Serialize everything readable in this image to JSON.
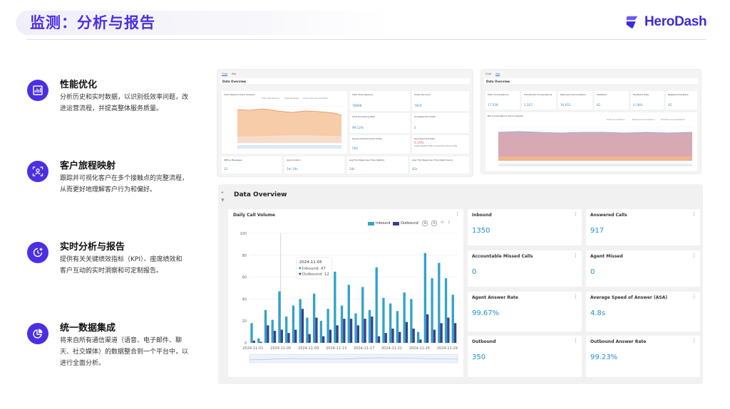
{
  "header": {
    "title": "监测：分析与报告",
    "logo_text": "HeroDash",
    "accent_color": "#4c2fe3"
  },
  "features": [
    {
      "icon": "chart-icon",
      "title": "性能优化",
      "desc": "分析历史和实时数据，以识别低效率问题，改进运营流程，并提高整体服务质量。"
    },
    {
      "icon": "customer-scan-icon",
      "title": "客户旅程映射",
      "desc": "跟踪并可视化客户在多个接触点的完整流程，从而更好地理解客户行为和偏好。"
    },
    {
      "icon": "clock-plus-icon",
      "title": "实时分析与报告",
      "desc": "提供有关关键绩效指标（KPI）、座席绩效和客户互动的实时洞察和可定制报告。"
    },
    {
      "icon": "pie-chart-icon",
      "title": "统一数据集成",
      "desc": "将来自所有通信渠道（语音、电子邮件、聊天、社交媒体）的数据整合到一个平台中，以进行全面分析。"
    }
  ],
  "shot_left": {
    "tabs": [
      "Chat",
      "Bot"
    ],
    "header": "Data Overview",
    "chart_title": "Chat Sessions Trend Analysis",
    "legend": [
      "Total Chat Sessions",
      "Chats Received",
      "Queue Abandonment Rate"
    ],
    "cards": [
      {
        "label": "Total Chat Sessions",
        "value": "78698"
      },
      {
        "label": "Chats Serviced",
        "value": "7816"
      },
      {
        "label": "Chat Processing Rate",
        "value": "99.12%"
      },
      {
        "label": "Unresponded Chats",
        "value": "2"
      },
      {
        "label": "Queue Abandonment Chats",
        "value": "560"
      },
      {
        "label": "Abandonment Rate",
        "value": "0.15%",
        "sub": "Chats Expelled After Consecutive Interval Fails",
        "red": true
      }
    ],
    "bottom": [
      {
        "label": "Offline Messages",
        "value": "12"
      },
      {
        "label": "Avg Duration",
        "value": "5m 19s"
      },
      {
        "label": "Avg First Response Time (Waiter)",
        "value": "24s"
      },
      {
        "label": "Avg. First Response Time (Wait Users)",
        "value": "42s"
      }
    ]
  },
  "shot_right": {
    "tabs": [
      "Chat",
      "Bot"
    ],
    "header": "Data Overview",
    "cards": [
      {
        "label": "Total Conversations",
        "value": "17,559"
      },
      {
        "label": "Transferred Conversations",
        "value": "1,507"
      },
      {
        "label": "Resolved Conversations",
        "value": "16,051"
      },
      {
        "label": "Feedback",
        "value": "81"
      },
      {
        "label": "Feedback Rate",
        "value": "0.18%"
      },
      {
        "label": "Negative Feedback",
        "value": "45"
      }
    ],
    "chart_title": "Bot Conversations Trend Analysis",
    "legend": [
      "Total Conversations",
      "Resolved Conversations",
      "Transferred Conversations"
    ]
  },
  "main": {
    "title": "Data Overview",
    "chart_title": "Daily Call Volume",
    "tooltip": {
      "date": "2024-11-05",
      "inbound": "Inbound: 47",
      "outbound": "Outbound: 12"
    },
    "cards": [
      {
        "label": "Inbound",
        "value": "1350"
      },
      {
        "label": "Answered Calls",
        "value": "917"
      },
      {
        "label": "Accountable Missed Calls",
        "value": "0"
      },
      {
        "label": "Agent Missed",
        "value": "0"
      },
      {
        "label": "Agent Answer Rate",
        "value": "99.67%"
      },
      {
        "label": "Average Speed of Answer (ASA)",
        "value": "4.8s"
      },
      {
        "label": "Outbound",
        "value": "350"
      },
      {
        "label": "Outbound Answer Rate",
        "value": "99.23%"
      }
    ]
  },
  "chart_data": {
    "type": "bar",
    "title": "Daily Call Volume",
    "categories": [
      "2024-11-01",
      "2024-11-02",
      "2024-11-03",
      "2024-11-04",
      "2024-11-05",
      "2024-11-06",
      "2024-11-07",
      "2024-11-08",
      "2024-11-09",
      "2024-11-10",
      "2024-11-11",
      "2024-11-12",
      "2024-11-13",
      "2024-11-14",
      "2024-11-15",
      "2024-11-16",
      "2024-11-17",
      "2024-11-18",
      "2024-11-19",
      "2024-11-20",
      "2024-11-21",
      "2024-11-22",
      "2024-11-23",
      "2024-11-24",
      "2024-11-25",
      "2024-11-26",
      "2024-11-27",
      "2024-11-28",
      "2024-11-29",
      "2024-11-30"
    ],
    "tick_labels": [
      "2024-11-01",
      "2024-11-05",
      "2024-11-09",
      "2024-11-13",
      "2024-11-17",
      "2024-11-21",
      "2024-11-25",
      "2024-11-29"
    ],
    "series": [
      {
        "name": "Inbound",
        "color": "#2fa3c8",
        "values": [
          18,
          4,
          30,
          21,
          47,
          24,
          34,
          40,
          23,
          45,
          20,
          31,
          65,
          34,
          53,
          27,
          51,
          30,
          69,
          41,
          36,
          29,
          46,
          40,
          10,
          82,
          59,
          73,
          59,
          44
        ]
      },
      {
        "name": "Outbound",
        "color": "#3a3f8f",
        "values": [
          2,
          1,
          16,
          11,
          12,
          9,
          12,
          31,
          8,
          23,
          6,
          12,
          16,
          22,
          22,
          16,
          22,
          24,
          6,
          9,
          13,
          10,
          19,
          13,
          3,
          26,
          12,
          18,
          23,
          18
        ]
      }
    ],
    "ylim": [
      0,
      100
    ],
    "yticks": [
      0,
      20,
      40,
      60,
      80,
      100
    ],
    "legend_position": "top-right",
    "grid": true
  }
}
